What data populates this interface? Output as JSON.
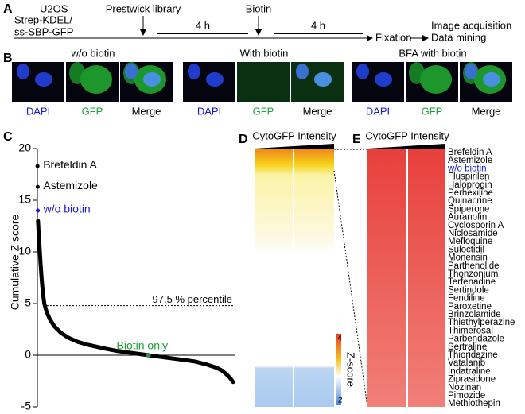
{
  "panel_a": {
    "label": "A",
    "cell_line": [
      "U2OS",
      "Strep-KDEL/",
      "ss-SBP-GFP"
    ],
    "steps": [
      "Prestwick library",
      "Biotin"
    ],
    "durations": [
      "4 h",
      "4 h"
    ],
    "end": "Fixation",
    "outputs": [
      "Image acquisition",
      "Data mining"
    ]
  },
  "panel_b": {
    "label": "B",
    "conditions": [
      "w/o biotin",
      "With biotin",
      "BFA with biotin"
    ],
    "channels": [
      "DAPI",
      "GFP",
      "Merge"
    ]
  },
  "chart_data": {
    "type": "line",
    "panel_label": "C",
    "ylabel": "Cumulative Z score",
    "xlim": [
      0,
      1280
    ],
    "ylim": [
      -5,
      20
    ],
    "yticks": [
      -5,
      0,
      5,
      10,
      15,
      20
    ],
    "series": [
      {
        "color": "#000000",
        "x": [
          4,
          8,
          12,
          16,
          20,
          25,
          30,
          36,
          45,
          60,
          80,
          110,
          150,
          200,
          260,
          330,
          420,
          520,
          620,
          720,
          820,
          920,
          1020,
          1100,
          1160,
          1200,
          1230,
          1250,
          1270
        ],
        "values": [
          13,
          12,
          11,
          10,
          9,
          8,
          7,
          6,
          5,
          4.2,
          3.5,
          2.8,
          2.2,
          1.7,
          1.3,
          1,
          0.7,
          0.4,
          0.2,
          0,
          -0.2,
          -0.4,
          -0.6,
          -0.9,
          -1.2,
          -1.5,
          -1.9,
          -2.2,
          -2.6
        ]
      }
    ],
    "annotations": [
      {
        "text": "Brefeldin A",
        "x": 1,
        "y": 18.3,
        "color": "#000000"
      },
      {
        "text": "Astemizole",
        "x": 2,
        "y": 16.3,
        "color": "#000000"
      },
      {
        "text": "w/o biotin",
        "x": 3,
        "y": 14,
        "color": "#1a1acc"
      },
      {
        "text": "Biotin only",
        "x": 720,
        "y": 0,
        "color": "#1e9e3a"
      }
    ],
    "threshold": {
      "value": 4.8,
      "label": "97.5 % percentile"
    }
  },
  "panel_d": {
    "label": "D",
    "header": "CytoGFP Intensity",
    "colorbar_label": "Z-score",
    "colorbar_ticks": [
      4,
      -2
    ]
  },
  "panel_e": {
    "label": "E",
    "header": "CytoGFP Intensity",
    "compounds": [
      "Brefeldin A",
      "Astemizole",
      "w/o biotin",
      "Fluspirilen",
      "Haloprogin",
      "Perhexiline",
      "Quinacrine",
      "Spiperone",
      "Auranofin",
      "Cyclosporin A",
      "Niclosamide",
      "Mefloquine",
      "Suloctidil",
      "Monensin",
      "Parthenolide",
      "Thonzonium",
      "Terfenadine",
      "Sertindole",
      "Fendiline",
      "Paroxetine",
      "Brinzolamide",
      "Thiethylperazine",
      "Thimerosal",
      "Parbendazole",
      "Sertraline",
      "Thioridazine",
      "Vatalanib",
      "Indatraline",
      "Ziprasidone",
      "Nozinan",
      "Pimozide",
      "Methiothepin"
    ]
  }
}
